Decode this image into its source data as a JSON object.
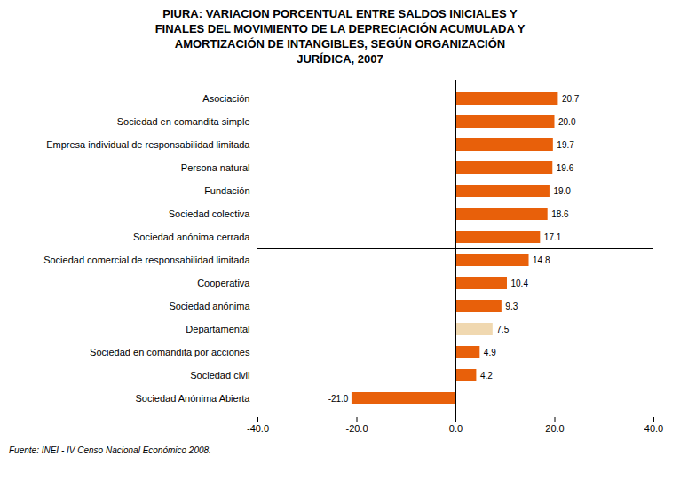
{
  "chart_data": {
    "type": "bar",
    "orientation": "horizontal",
    "title": "PIURA: VARIACION PORCENTUAL ENTRE SALDOS INICIALES Y\nFINALES DEL MOVIMIENTO DE LA DEPRECIACIÓN ACUMULADA Y\nAMORTIZACIÓN DE INTANGIBLES, SEGÚN ORGANIZACIÓN\nJURÍDICA, 2007",
    "categories": [
      "Sociedad Anónima Abierta",
      "Sociedad civil",
      "Sociedad en comandita por acciones",
      "Departamental",
      "Sociedad anónima",
      "Cooperativa",
      "Sociedad comercial de responsabilidad limitada",
      "Sociedad anónima cerrada",
      "Sociedad colectiva",
      "Fundación",
      "Persona natural",
      "Empresa individual de responsabilidad limitada",
      "Sociedad en comandita simple",
      "Asociación"
    ],
    "values": [
      -21.0,
      4.2,
      4.9,
      7.5,
      9.3,
      10.4,
      14.8,
      17.1,
      18.6,
      19.0,
      19.6,
      19.7,
      20.0,
      20.7
    ],
    "value_labels": [
      "-21.0",
      "4.2",
      "4.9",
      "7.5",
      "9.3",
      "10.4",
      "14.8",
      "17.1",
      "18.6",
      "19.0",
      "19.6",
      "19.7",
      "20.0",
      "20.7"
    ],
    "colors": [
      "#E8600A",
      "#E8600A",
      "#E8600A",
      "#F0D8B0",
      "#E8600A",
      "#E8600A",
      "#E8600A",
      "#E8600A",
      "#E8600A",
      "#E8600A",
      "#E8600A",
      "#E8600A",
      "#E8600A",
      "#E8600A"
    ],
    "xlim": [
      -40,
      40
    ],
    "xticks": [
      {
        "value": -40,
        "label": "-40.0"
      },
      {
        "value": -20,
        "label": "-20.0"
      },
      {
        "value": 0,
        "label": "0.0"
      },
      {
        "value": 20,
        "label": "20.0"
      },
      {
        "value": 40,
        "label": "40.0"
      }
    ],
    "data_labels": true,
    "grid": false,
    "footnote": "Fuente: INEI - IV Censo Nacional Económico 2008."
  }
}
